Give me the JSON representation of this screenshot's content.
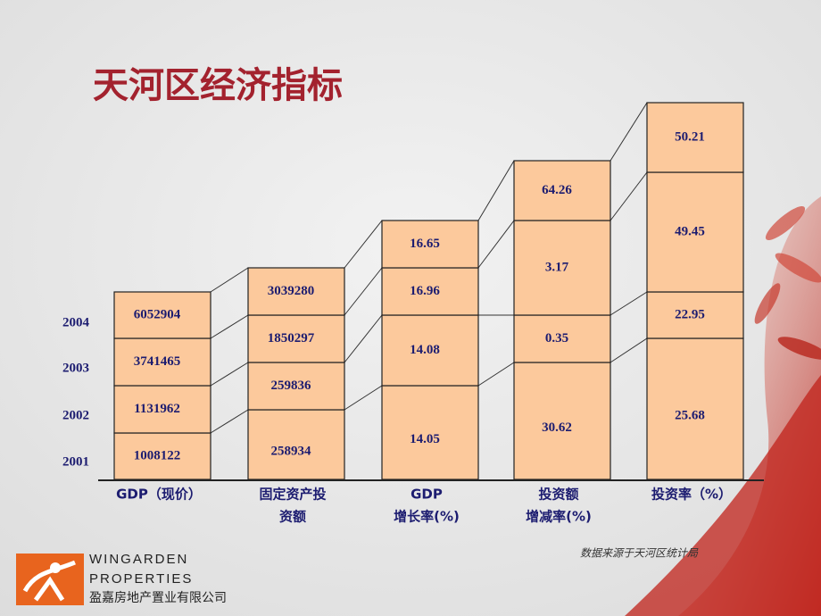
{
  "title": "天河区经济指标",
  "years": [
    "2001",
    "2002",
    "2003",
    "2004"
  ],
  "columns": [
    {
      "label_lines": [
        "GDP（现价）"
      ],
      "cells": [
        "1008122",
        "1131962",
        "3741465",
        "6052904"
      ]
    },
    {
      "label_lines": [
        "固定资产投",
        "资额"
      ],
      "cells": [
        "258934",
        "259836",
        "1850297",
        "3039280"
      ]
    },
    {
      "label_lines": [
        "GDP",
        "增长率(%)"
      ],
      "cells": [
        "14.05",
        "14.08",
        "16.96",
        "16.65"
      ]
    },
    {
      "label_lines": [
        "投资额",
        "增减率(%)"
      ],
      "cells": [
        "30.62",
        "0.35",
        "3.17",
        "64.26"
      ]
    },
    {
      "label_lines": [
        "投资率（%）"
      ],
      "cells": [
        "25.68",
        "22.95",
        "49.45",
        "50.21"
      ]
    }
  ],
  "source": "数据来源于天河区统计局",
  "logo": {
    "line1": "WINGARDEN",
    "line2": "PROPERTIES",
    "line3": "盈嘉房地产置业有限公司"
  }
}
